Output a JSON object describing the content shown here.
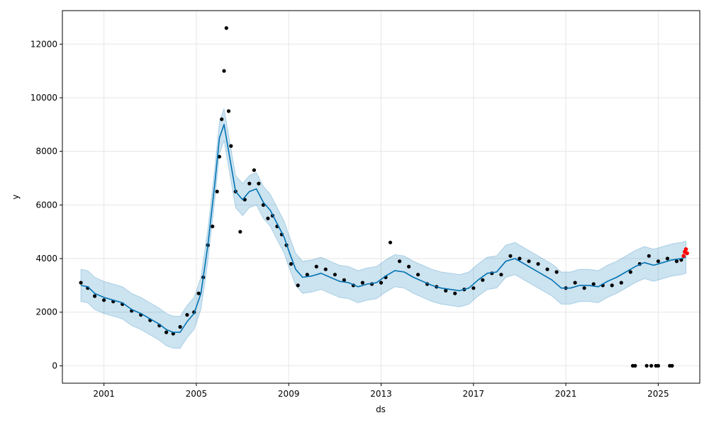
{
  "chart_data": {
    "type": "line",
    "xlabel": "ds",
    "ylabel": "y",
    "xlim": [
      1999.2,
      2026.8
    ],
    "ylim": [
      -650,
      13250
    ],
    "grid": true,
    "x_ticks": [
      2001,
      2005,
      2009,
      2013,
      2017,
      2021,
      2025
    ],
    "x_tick_labels": [
      "2001",
      "2005",
      "2009",
      "2013",
      "2017",
      "2021",
      "2025"
    ],
    "y_ticks": [
      0,
      2000,
      4000,
      6000,
      8000,
      10000,
      12000
    ],
    "y_tick_labels": [
      "0",
      "2000",
      "4000",
      "6000",
      "8000",
      "10000",
      "12000"
    ],
    "colors": {
      "forecast_line": "#0072B2",
      "interval_fill": "#0072B2",
      "observed_points": "#000000",
      "forecast_points": "#ff0000",
      "grid": "#e6e6e6"
    },
    "forecast": {
      "x": [
        2000.0,
        2000.3,
        2000.6,
        2001.0,
        2001.4,
        2001.8,
        2002.2,
        2002.6,
        2003.0,
        2003.4,
        2003.7,
        2004.0,
        2004.3,
        2004.6,
        2004.9,
        2005.2,
        2005.5,
        2005.8,
        2006.0,
        2006.2,
        2006.4,
        2006.7,
        2007.0,
        2007.3,
        2007.6,
        2007.9,
        2008.2,
        2008.5,
        2008.8,
        2009.0,
        2009.3,
        2009.6,
        2010.0,
        2010.4,
        2010.8,
        2011.2,
        2011.6,
        2012.0,
        2012.4,
        2012.8,
        2013.2,
        2013.6,
        2014.0,
        2014.4,
        2014.8,
        2015.2,
        2015.6,
        2016.0,
        2016.4,
        2016.8,
        2017.2,
        2017.6,
        2018.0,
        2018.4,
        2018.8,
        2019.2,
        2019.6,
        2020.0,
        2020.4,
        2020.8,
        2021.2,
        2021.6,
        2022.0,
        2022.4,
        2022.8,
        2023.2,
        2023.6,
        2024.0,
        2024.4,
        2024.8,
        2025.2,
        2025.6,
        2026.0,
        2026.2
      ],
      "y": [
        3000,
        2950,
        2700,
        2550,
        2450,
        2350,
        2100,
        1950,
        1750,
        1550,
        1350,
        1250,
        1250,
        1650,
        1950,
        2700,
        4500,
        6800,
        8500,
        9000,
        8000,
        6500,
        6200,
        6500,
        6600,
        6100,
        5800,
        5300,
        4800,
        4300,
        3600,
        3300,
        3350,
        3450,
        3300,
        3150,
        3100,
        2950,
        3050,
        3100,
        3350,
        3550,
        3500,
        3300,
        3150,
        3000,
        2900,
        2850,
        2800,
        2900,
        3200,
        3450,
        3500,
        3900,
        4000,
        3800,
        3600,
        3400,
        3200,
        2900,
        2900,
        3000,
        3000,
        2950,
        3150,
        3300,
        3500,
        3700,
        3850,
        3750,
        3850,
        3950,
        4000,
        4050
      ]
    },
    "uncertainty_band": {
      "lower_offset": -600,
      "upper_offset": 600
    },
    "observed_points": {
      "x": [
        2000.0,
        2000.3,
        2000.6,
        2001.0,
        2001.4,
        2001.8,
        2002.2,
        2002.6,
        2003.0,
        2003.4,
        2003.7,
        2004.0,
        2004.3,
        2004.6,
        2004.9,
        2005.1,
        2005.3,
        2005.5,
        2005.7,
        2005.9,
        2006.0,
        2006.1,
        2006.2,
        2006.3,
        2006.4,
        2006.5,
        2006.7,
        2006.9,
        2007.1,
        2007.3,
        2007.5,
        2007.7,
        2007.9,
        2008.1,
        2008.3,
        2008.5,
        2008.7,
        2008.9,
        2009.1,
        2009.4,
        2009.8,
        2010.2,
        2010.6,
        2011.0,
        2011.4,
        2011.8,
        2012.2,
        2012.6,
        2013.0,
        2013.2,
        2013.4,
        2013.8,
        2014.2,
        2014.6,
        2015.0,
        2015.4,
        2015.8,
        2016.2,
        2016.6,
        2017.0,
        2017.4,
        2017.8,
        2018.2,
        2018.6,
        2019.0,
        2019.4,
        2019.8,
        2020.2,
        2020.6,
        2021.0,
        2021.4,
        2021.8,
        2022.2,
        2022.6,
        2023.0,
        2023.4,
        2023.8,
        2024.2,
        2024.6,
        2025.0,
        2025.4,
        2025.8,
        2026.0,
        2023.9,
        2024.0,
        2024.5,
        2024.7,
        2024.9,
        2025.0,
        2025.5,
        2025.6
      ],
      "y": [
        3100,
        2900,
        2600,
        2450,
        2400,
        2300,
        2050,
        1900,
        1700,
        1500,
        1250,
        1200,
        1450,
        1900,
        2000,
        2700,
        3300,
        4500,
        5200,
        6500,
        7800,
        9200,
        11000,
        12600,
        9500,
        8200,
        6500,
        5000,
        6200,
        6800,
        7300,
        6800,
        6000,
        5500,
        5600,
        5200,
        4900,
        4500,
        3800,
        3000,
        3400,
        3700,
        3600,
        3400,
        3200,
        3000,
        3100,
        3050,
        3100,
        3300,
        4600,
        3900,
        3700,
        3400,
        3050,
        2950,
        2800,
        2700,
        2850,
        2900,
        3200,
        3450,
        3400,
        4100,
        4000,
        3900,
        3800,
        3600,
        3500,
        2900,
        3100,
        2900,
        3050,
        3000,
        3000,
        3100,
        3500,
        3800,
        4100,
        3900,
        4000,
        3900,
        3950,
        0,
        0,
        0,
        0,
        0,
        0,
        0,
        0
      ]
    },
    "forecast_points": {
      "x": [
        2026.1,
        2026.15,
        2026.2,
        2026.25
      ],
      "y": [
        4100,
        4250,
        4350,
        4200
      ]
    }
  }
}
